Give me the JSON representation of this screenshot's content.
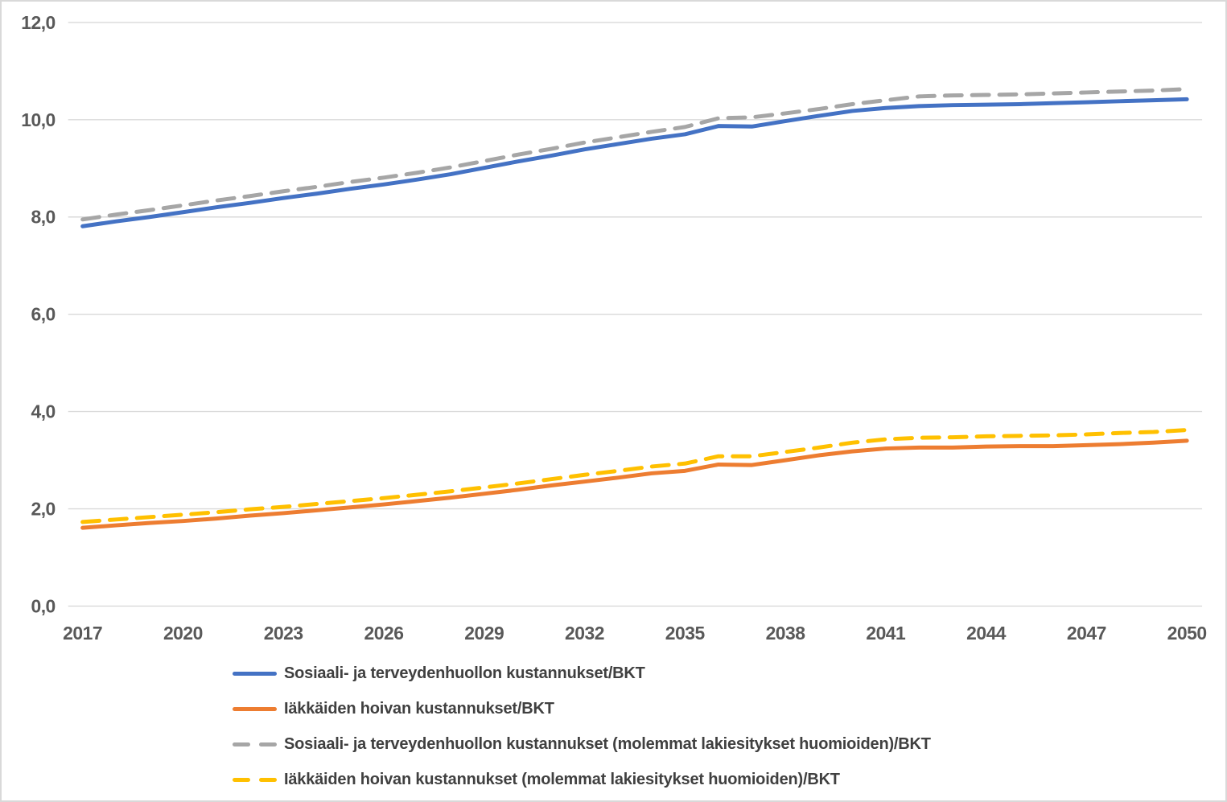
{
  "figure": {
    "background": "#FFFFFF",
    "border_color": "#D9D9D9"
  },
  "axes": {
    "y_ticks": [
      "0,0",
      "2,0",
      "4,0",
      "6,0",
      "8,0",
      "10,0",
      "12,0"
    ],
    "x_ticks": [
      "2017",
      "2020",
      "2023",
      "2026",
      "2029",
      "2032",
      "2035",
      "2038",
      "2041",
      "2044",
      "2047",
      "2050"
    ],
    "tick_color": "#595959",
    "gridline_color": "#D9D9D9"
  },
  "chart_data": {
    "type": "line",
    "title": "",
    "xlabel": "",
    "ylabel": "",
    "ylim": [
      0,
      12
    ],
    "ytick_interval": 2,
    "grid": true,
    "legend_position": "bottom-left",
    "decimal_separator": ",",
    "x": [
      2017,
      2018,
      2019,
      2020,
      2021,
      2022,
      2023,
      2024,
      2025,
      2026,
      2027,
      2028,
      2029,
      2030,
      2031,
      2032,
      2033,
      2034,
      2035,
      2036,
      2037,
      2038,
      2039,
      2040,
      2041,
      2042,
      2043,
      2044,
      2045,
      2046,
      2047,
      2048,
      2049,
      2050
    ],
    "series": [
      {
        "name": "Sosiaali- ja terveydenhuollon kustannukset/BKT",
        "color": "#4472C4",
        "style": "solid",
        "values": [
          7.81,
          7.91,
          8.0,
          8.1,
          8.2,
          8.29,
          8.39,
          8.48,
          8.58,
          8.67,
          8.77,
          8.88,
          9.01,
          9.14,
          9.26,
          9.39,
          9.5,
          9.61,
          9.7,
          9.87,
          9.86,
          9.97,
          10.08,
          10.18,
          10.24,
          10.28,
          10.3,
          10.31,
          10.32,
          10.34,
          10.36,
          10.38,
          10.4,
          10.42
        ]
      },
      {
        "name": "Iäkkäiden hoivan kustannukset/BKT",
        "color": "#ED7D31",
        "style": "solid",
        "values": [
          1.61,
          1.66,
          1.71,
          1.75,
          1.8,
          1.86,
          1.91,
          1.97,
          2.03,
          2.09,
          2.16,
          2.23,
          2.31,
          2.39,
          2.48,
          2.56,
          2.64,
          2.73,
          2.78,
          2.91,
          2.9,
          3.0,
          3.1,
          3.18,
          3.24,
          3.26,
          3.26,
          3.28,
          3.29,
          3.29,
          3.31,
          3.33,
          3.36,
          3.4
        ]
      },
      {
        "name": "Sosiaali- ja terveydenhuollon kustannukset (molemmat lakiesitykset huomioiden)/BKT",
        "color": "#A6A6A6",
        "style": "dashed",
        "values": [
          7.95,
          8.05,
          8.14,
          8.24,
          8.34,
          8.43,
          8.53,
          8.62,
          8.72,
          8.81,
          8.91,
          9.02,
          9.15,
          9.28,
          9.4,
          9.53,
          9.64,
          9.75,
          9.85,
          10.03,
          10.05,
          10.13,
          10.22,
          10.32,
          10.4,
          10.48,
          10.5,
          10.51,
          10.52,
          10.54,
          10.56,
          10.58,
          10.6,
          10.63
        ]
      },
      {
        "name": "Iäkkäiden hoivan kustannukset (molemmat lakiesitykset huomioiden)/BKT",
        "color": "#FFC000",
        "style": "dashed",
        "values": [
          1.73,
          1.78,
          1.83,
          1.88,
          1.93,
          1.99,
          2.04,
          2.1,
          2.16,
          2.22,
          2.29,
          2.36,
          2.44,
          2.52,
          2.61,
          2.7,
          2.78,
          2.87,
          2.93,
          3.08,
          3.08,
          3.17,
          3.26,
          3.36,
          3.43,
          3.46,
          3.47,
          3.49,
          3.5,
          3.51,
          3.53,
          3.56,
          3.58,
          3.62
        ]
      }
    ]
  }
}
